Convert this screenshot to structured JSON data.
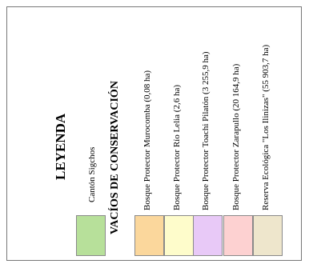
{
  "legend": {
    "title": "LEYENDA",
    "canton": {
      "label": "Cantón Sigchos",
      "color": "#b7e09a"
    },
    "section_title": "VACÍOS DE CONSERVACIÓN",
    "items": [
      {
        "label": "Bosque Protector Murocomba (0,08 ha)",
        "color": "#fbd79c"
      },
      {
        "label": "Bosque Protector Río Lelia (2,6 ha)",
        "color": "#fefccb"
      },
      {
        "label": "Bosque Protector Toachi Pilatón (3 255,9 ha)",
        "color": "#e8c9f7"
      },
      {
        "label": "Bosque Protector Zarapullo (20 164,9 ha)",
        "color": "#fdd1d1"
      },
      {
        "label": "Reserva Ecológica \"Los Ilinizas\" (55 903,7 ha)",
        "color": "#eee6cc"
      }
    ]
  }
}
